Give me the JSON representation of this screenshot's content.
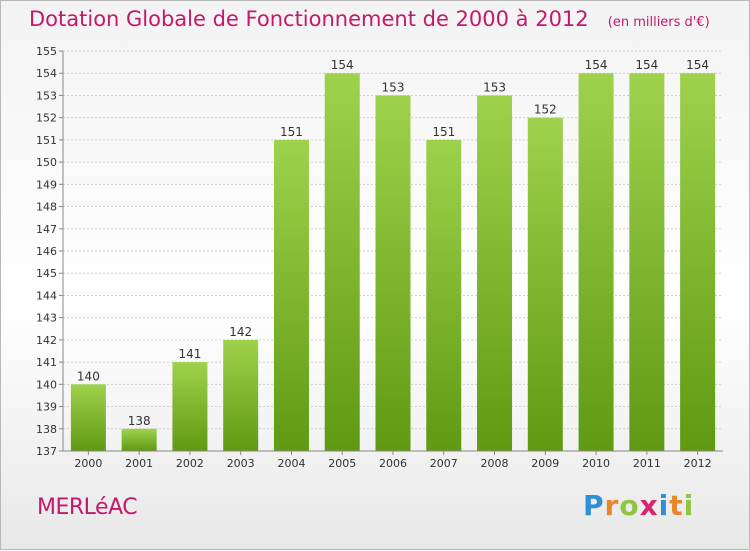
{
  "title": "Dotation Globale de Fonctionnement de 2000 à 2012",
  "unit": "(en milliers d'€)",
  "commune": "MERLéAC",
  "logo": {
    "text": "Proxiti",
    "letters": [
      {
        "char": "P",
        "color": "#2e8fd6"
      },
      {
        "char": "r",
        "color": "#e8862a"
      },
      {
        "char": "o",
        "color": "#8ec63f"
      },
      {
        "char": "x",
        "color": "#d6246e"
      },
      {
        "char": "i",
        "color": "#2e8fd6"
      },
      {
        "char": "t",
        "color": "#e8862a"
      },
      {
        "char": "i",
        "color": "#8ec63f"
      }
    ]
  },
  "colors": {
    "title": "#c4196b",
    "bar_top": "#9fd24c",
    "bar_bottom": "#5f9a12",
    "grid": "#cfcfcf",
    "axis": "#888888"
  },
  "chart_data": {
    "type": "bar",
    "title": "Dotation Globale de Fonctionnement de 2000 à 2012",
    "xlabel": "",
    "ylabel": "",
    "ylim": [
      137,
      155
    ],
    "yticks": [
      137,
      138,
      139,
      140,
      141,
      142,
      143,
      144,
      145,
      146,
      147,
      148,
      149,
      150,
      151,
      152,
      153,
      154,
      155
    ],
    "grid": true,
    "categories": [
      "2000",
      "2001",
      "2002",
      "2003",
      "2004",
      "2005",
      "2006",
      "2007",
      "2008",
      "2009",
      "2010",
      "2011",
      "2012"
    ],
    "values": [
      140,
      138,
      141,
      142,
      151,
      154,
      153,
      151,
      153,
      152,
      154,
      154,
      154
    ],
    "data_labels": [
      "140",
      "138",
      "141",
      "142",
      "151",
      "154",
      "153",
      "151",
      "153",
      "152",
      "154",
      "154",
      "154"
    ]
  }
}
